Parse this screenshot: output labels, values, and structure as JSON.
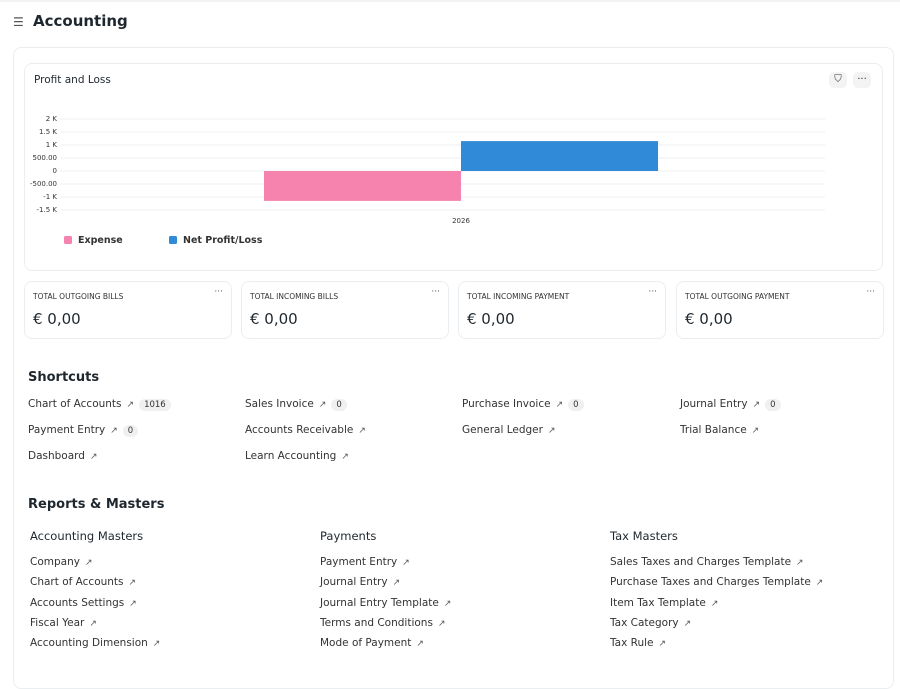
{
  "header": {
    "title": "Accounting"
  },
  "chart_data": {
    "type": "bar",
    "title": "Profit and Loss",
    "categories": [
      "2026"
    ],
    "series": [
      {
        "name": "Expense",
        "color": "#f683ae",
        "values": [
          -1150
        ]
      },
      {
        "name": "Net Profit/Loss",
        "color": "#318ad8",
        "values": [
          1150
        ]
      }
    ],
    "ylim": [
      -1500,
      2000
    ],
    "yticks": [
      {
        "value": 2000,
        "label": "2 K"
      },
      {
        "value": 1500,
        "label": "1.5 K"
      },
      {
        "value": 1000,
        "label": "1 K"
      },
      {
        "value": 500,
        "label": "500.00"
      },
      0,
      {
        "value": -500,
        "label": "-500.00"
      },
      {
        "value": -1000,
        "label": "-1 K"
      },
      {
        "value": -1500,
        "label": "-1.5 K"
      }
    ],
    "grid": true
  },
  "number_cards": [
    {
      "label": "TOTAL OUTGOING BILLS",
      "value": "€ 0,00"
    },
    {
      "label": "TOTAL INCOMING BILLS",
      "value": "€ 0,00"
    },
    {
      "label": "TOTAL INCOMING PAYMENT",
      "value": "€ 0,00"
    },
    {
      "label": "TOTAL OUTGOING PAYMENT",
      "value": "€ 0,00"
    }
  ],
  "shortcuts": {
    "title": "Shortcuts",
    "items": [
      {
        "label": "Chart of Accounts",
        "count": 1016
      },
      {
        "label": "Sales Invoice",
        "count": 0
      },
      {
        "label": "Purchase Invoice",
        "count": 0
      },
      {
        "label": "Journal Entry",
        "count": 0
      },
      {
        "label": "Payment Entry",
        "count": 0
      },
      {
        "label": "Accounts Receivable"
      },
      {
        "label": "General Ledger"
      },
      {
        "label": "Trial Balance"
      },
      {
        "label": "Dashboard"
      },
      {
        "label": "Learn Accounting"
      }
    ]
  },
  "reports": {
    "title": "Reports & Masters",
    "columns": [
      {
        "title": "Accounting Masters",
        "items": [
          "Company",
          "Chart of Accounts",
          "Accounts Settings",
          "Fiscal Year",
          "Accounting Dimension"
        ]
      },
      {
        "title": "Payments",
        "items": [
          "Payment Entry",
          "Journal Entry",
          "Journal Entry Template",
          "Terms and Conditions",
          "Mode of Payment"
        ]
      },
      {
        "title": "Tax Masters",
        "items": [
          "Sales Taxes and Charges Template",
          "Purchase Taxes and Charges Template",
          "Item Tax Template",
          "Tax Category",
          "Tax Rule"
        ]
      }
    ]
  }
}
